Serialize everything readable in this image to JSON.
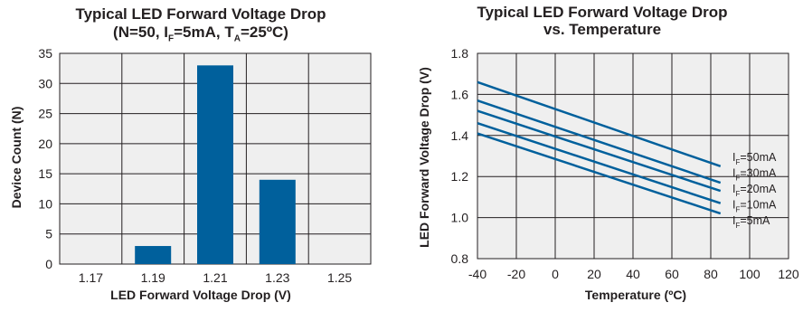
{
  "colors": {
    "series": "#00609c",
    "plot_bg": "#efefef",
    "grid": "#231f20"
  },
  "charts": [
    {
      "title_main": "Typical LED Forward Voltage Drop",
      "title_sub_1": "(N=50, I",
      "title_sub_F": "F",
      "title_sub_2": "=5mA, T",
      "title_sub_A": "A",
      "title_sub_3": "=25ºC)"
    },
    {
      "title_line1": "Typical LED Forward Voltage Drop",
      "title_line2": "vs. Temperature"
    }
  ],
  "chart_data": [
    {
      "type": "bar",
      "categories": [
        "1.17",
        "1.19",
        "1.21",
        "1.23",
        "1.25"
      ],
      "values": [
        0,
        3,
        33,
        14,
        0
      ],
      "xlabel": "LED Forward Voltage Drop (V)",
      "ylabel": "Device Count (N)",
      "ylim": [
        0,
        35
      ],
      "yticks": [
        0,
        5,
        10,
        15,
        20,
        25,
        30,
        35
      ],
      "grid": true
    },
    {
      "type": "line",
      "xlabel": "Temperature (ºC)",
      "ylabel": "LED Forward Voltage Drop (V)",
      "xlim": [
        -40,
        120
      ],
      "ylim": [
        0.8,
        1.8
      ],
      "xticks": [
        -40,
        -20,
        0,
        20,
        40,
        60,
        80,
        100,
        120
      ],
      "yticks": [
        "0.8",
        "1.0",
        "1.2",
        "1.4",
        "1.6",
        "1.8"
      ],
      "grid": true,
      "legend_position": "right, inline at line ends",
      "series": [
        {
          "name": "IF=50mA",
          "label_I": "I",
          "label_sub": "F",
          "label_rest": "=50mA",
          "x": [
            -40,
            85
          ],
          "y": [
            1.66,
            1.25
          ]
        },
        {
          "name": "IF=30mA",
          "label_I": "I",
          "label_sub": "F",
          "label_rest": "=30mA",
          "x": [
            -40,
            85
          ],
          "y": [
            1.57,
            1.17
          ]
        },
        {
          "name": "IF=20mA",
          "label_I": "I",
          "label_sub": "F",
          "label_rest": "=20mA",
          "x": [
            -40,
            85
          ],
          "y": [
            1.52,
            1.13
          ]
        },
        {
          "name": "IF=10mA",
          "label_I": "I",
          "label_sub": "F",
          "label_rest": "=10mA",
          "x": [
            -40,
            85
          ],
          "y": [
            1.46,
            1.07
          ]
        },
        {
          "name": "IF=5mA",
          "label_I": "I",
          "label_sub": "F",
          "label_rest": "=5mA",
          "x": [
            -40,
            85
          ],
          "y": [
            1.41,
            1.02
          ]
        }
      ]
    }
  ]
}
